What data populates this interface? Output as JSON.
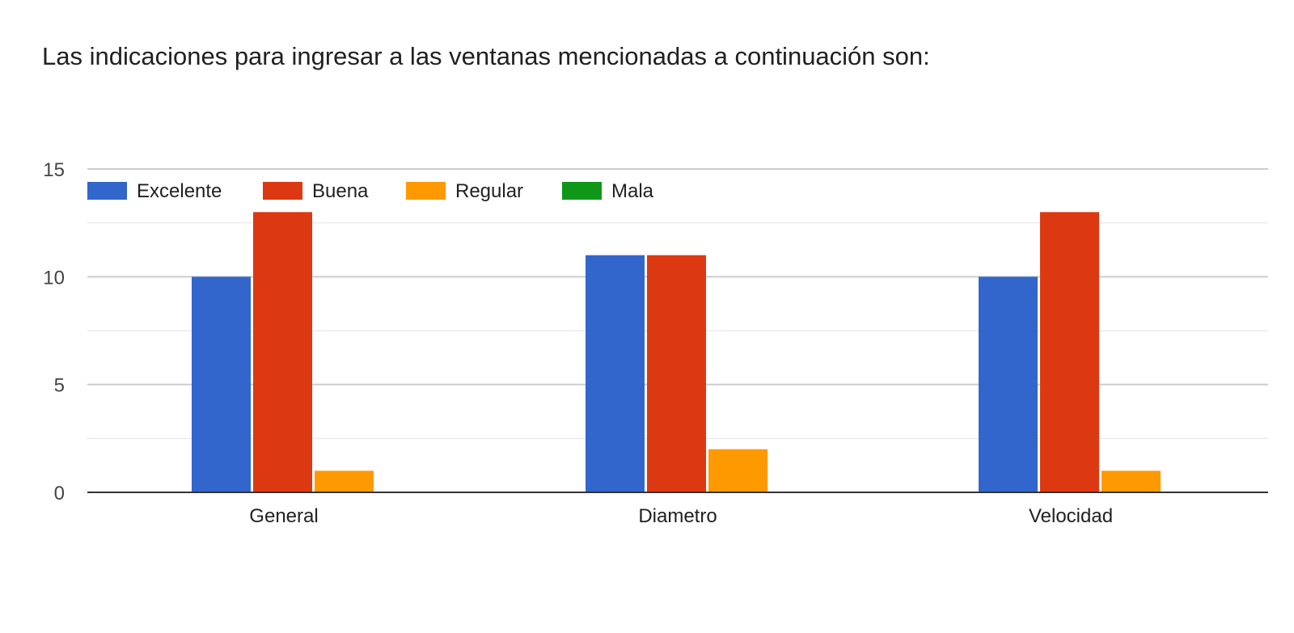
{
  "chart_data": {
    "type": "bar",
    "title": "Las indicaciones para ingresar a las ventanas mencionadas a continuación son:",
    "categories": [
      "General",
      "Diametro",
      "Velocidad"
    ],
    "series": [
      {
        "name": "Excelente",
        "color": "#3366cc",
        "values": [
          10,
          11,
          10
        ]
      },
      {
        "name": "Buena",
        "color": "#dc3912",
        "values": [
          13,
          11,
          13
        ]
      },
      {
        "name": "Regular",
        "color": "#ff9900",
        "values": [
          1,
          2,
          1
        ]
      },
      {
        "name": "Mala",
        "color": "#109618",
        "values": [
          0,
          0,
          0
        ]
      }
    ],
    "ylim": [
      0,
      15
    ],
    "yticks": [
      "0",
      "5",
      "10",
      "15"
    ],
    "grid": true,
    "legend_position": "top-left"
  }
}
